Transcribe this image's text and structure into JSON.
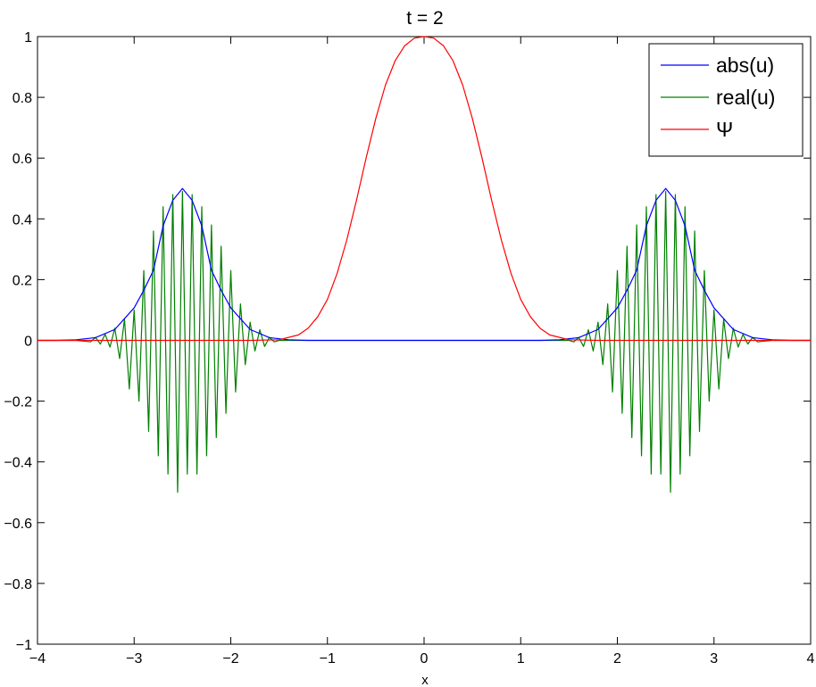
{
  "chart_data": {
    "type": "line",
    "title": "t = 2",
    "xlabel": "x",
    "ylabel": "",
    "xlim": [
      -4,
      4
    ],
    "ylim": [
      -1,
      1
    ],
    "xticks": [
      -4,
      -3,
      -2,
      -1,
      0,
      1,
      2,
      3,
      4
    ],
    "xtick_labels": [
      "−4",
      "−3",
      "−2",
      "−1",
      "0",
      "1",
      "2",
      "3",
      "4"
    ],
    "yticks": [
      -1,
      -0.8,
      -0.6,
      -0.4,
      -0.2,
      0,
      0.2,
      0.4,
      0.6,
      0.8,
      1
    ],
    "ytick_labels": [
      "−1",
      "−0.8",
      "−0.6",
      "−0.4",
      "−0.2",
      "0",
      "0.2",
      "0.4",
      "0.6",
      "0.8",
      "1"
    ],
    "grid": false,
    "legend_position": "top-right",
    "series": [
      {
        "name": "abs(u)",
        "color": "#0000ff",
        "x": [
          -4,
          -3.8,
          -3.6,
          -3.4,
          -3.2,
          -3.0,
          -2.9,
          -2.8,
          -2.7,
          -2.6,
          -2.5,
          -2.4,
          -2.3,
          -2.2,
          -2.1,
          -2.0,
          -1.8,
          -1.6,
          -1.4,
          -1.2,
          -1.0,
          0,
          1.0,
          1.2,
          1.4,
          1.6,
          1.8,
          2.0,
          2.1,
          2.2,
          2.3,
          2.4,
          2.5,
          2.6,
          2.7,
          2.8,
          2.9,
          3.0,
          3.2,
          3.4,
          3.6,
          3.8,
          4
        ],
        "y": [
          0.0,
          0.0,
          0.002,
          0.009,
          0.036,
          0.107,
          0.165,
          0.231,
          0.377,
          0.461,
          0.5,
          0.461,
          0.377,
          0.231,
          0.165,
          0.107,
          0.036,
          0.009,
          0.002,
          0.0,
          0.0,
          0.0,
          0.0,
          0.0,
          0.002,
          0.009,
          0.036,
          0.107,
          0.165,
          0.231,
          0.377,
          0.461,
          0.5,
          0.461,
          0.377,
          0.231,
          0.165,
          0.107,
          0.036,
          0.009,
          0.002,
          0.0,
          0.0
        ]
      },
      {
        "name": "real(u)",
        "color": "#008000",
        "x": [
          -4,
          -3.6,
          -3.45,
          -3.4,
          -3.35,
          -3.3,
          -3.25,
          -3.2,
          -3.15,
          -3.1,
          -3.05,
          -3.0,
          -2.95,
          -2.9,
          -2.85,
          -2.8,
          -2.75,
          -2.7,
          -2.65,
          -2.6,
          -2.55,
          -2.5,
          -2.45,
          -2.4,
          -2.35,
          -2.3,
          -2.25,
          -2.2,
          -2.15,
          -2.1,
          -2.05,
          -2.0,
          -1.95,
          -1.9,
          -1.85,
          -1.8,
          -1.75,
          -1.7,
          -1.65,
          -1.6,
          -1.55,
          -1.5,
          -1.4,
          1.4,
          1.5,
          1.55,
          1.6,
          1.65,
          1.7,
          1.75,
          1.8,
          1.85,
          1.9,
          1.95,
          2.0,
          2.05,
          2.1,
          2.15,
          2.2,
          2.25,
          2.3,
          2.35,
          2.4,
          2.45,
          2.5,
          2.55,
          2.6,
          2.65,
          2.7,
          2.75,
          2.8,
          2.85,
          2.9,
          2.95,
          3.0,
          3.05,
          3.1,
          3.15,
          3.2,
          3.25,
          3.3,
          3.35,
          3.4,
          3.45,
          3.6,
          4
        ],
        "y": [
          0,
          0,
          -0.005,
          0.01,
          -0.012,
          0.02,
          -0.022,
          0.04,
          -0.06,
          0.07,
          -0.16,
          0.1,
          -0.2,
          0.23,
          -0.3,
          0.36,
          -0.38,
          0.44,
          -0.44,
          0.48,
          -0.5,
          0.49,
          -0.44,
          0.48,
          -0.44,
          0.44,
          -0.38,
          0.38,
          -0.32,
          0.31,
          -0.24,
          0.23,
          -0.17,
          0.12,
          -0.08,
          0.06,
          -0.035,
          0.035,
          -0.02,
          0.01,
          -0.005,
          0,
          0,
          0,
          0,
          -0.005,
          0.01,
          -0.02,
          0.035,
          -0.035,
          0.06,
          -0.08,
          0.12,
          -0.17,
          0.23,
          -0.24,
          0.31,
          -0.32,
          0.38,
          -0.38,
          0.44,
          -0.44,
          0.48,
          -0.44,
          0.49,
          -0.5,
          0.48,
          -0.44,
          0.44,
          -0.38,
          0.36,
          -0.3,
          0.23,
          -0.2,
          0.1,
          -0.16,
          0.07,
          -0.06,
          0.04,
          -0.022,
          0.02,
          -0.012,
          0.01,
          -0.005,
          0,
          0
        ]
      },
      {
        "name": "Ψ",
        "color": "#ff0000",
        "x": [
          -4,
          -1.8,
          -1.5,
          -1.3,
          -1.2,
          -1.1,
          -1.0,
          -0.9,
          -0.8,
          -0.7,
          -0.6,
          -0.5,
          -0.4,
          -0.3,
          -0.2,
          -0.1,
          0,
          0.1,
          0.2,
          0.3,
          0.4,
          0.5,
          0.6,
          0.7,
          0.8,
          0.9,
          1.0,
          1.1,
          1.2,
          1.3,
          1.5,
          1.8,
          4
        ],
        "y": [
          0,
          0,
          0.002,
          0.018,
          0.04,
          0.078,
          0.135,
          0.22,
          0.33,
          0.46,
          0.6,
          0.73,
          0.84,
          0.92,
          0.97,
          0.995,
          1.0,
          0.995,
          0.97,
          0.92,
          0.84,
          0.73,
          0.6,
          0.46,
          0.33,
          0.22,
          0.135,
          0.078,
          0.04,
          0.018,
          0.002,
          0,
          0
        ]
      }
    ]
  }
}
